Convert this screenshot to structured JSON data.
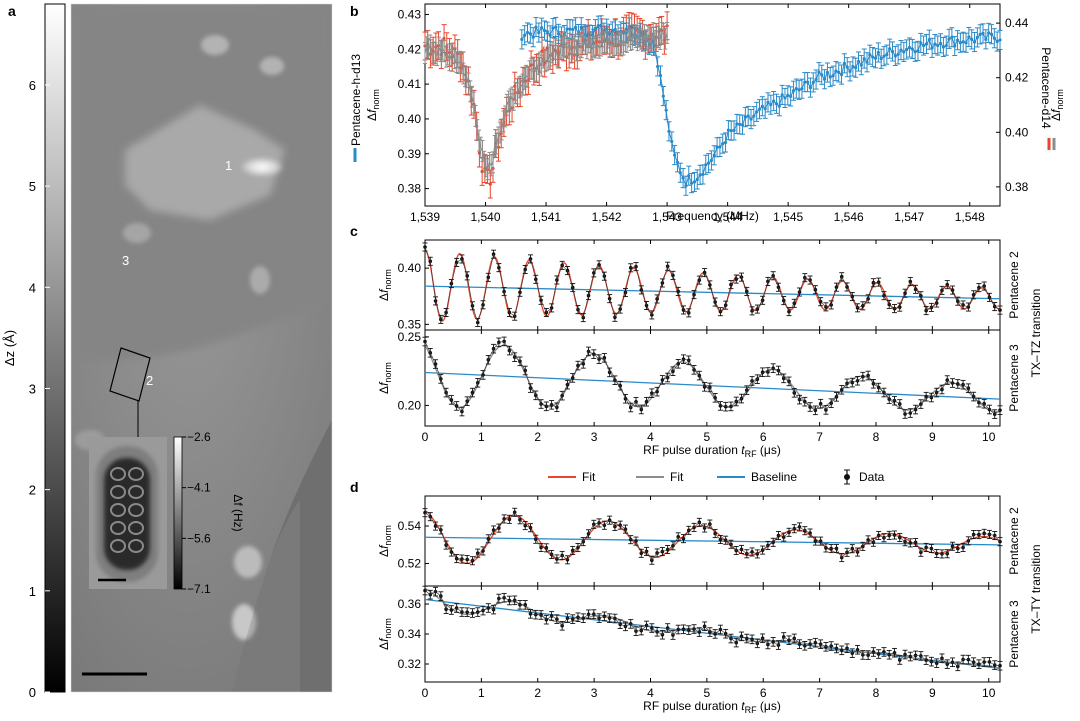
{
  "panel_a": {
    "letter": "a",
    "colorbar": {
      "label": "Δz (Å)",
      "ticks": [
        "0",
        "1",
        "2",
        "3",
        "4",
        "5",
        "6"
      ],
      "range": [
        0,
        6.8
      ]
    },
    "markers": [
      "1",
      "2",
      "3"
    ],
    "inset": {
      "colorbar_label": "Δf (Hz)",
      "ticks": [
        "−2.6",
        "−4.1",
        "−5.6",
        "−7.1"
      ],
      "range": [
        -7.1,
        -2.6
      ]
    }
  },
  "legend": {
    "items": [
      {
        "label": "Fit",
        "color": "#e8462a",
        "kind": "line"
      },
      {
        "label": "Fit",
        "color": "#8c8c8c",
        "kind": "line"
      },
      {
        "label": "Baseline",
        "color": "#2a8ac9",
        "kind": "line"
      },
      {
        "label": "Data",
        "color": "#111111",
        "kind": "marker"
      }
    ]
  },
  "chart_data": [
    {
      "panel": "b",
      "type": "line",
      "xlabel": "Frequency (MHz)",
      "xlim": [
        1539,
        1548.5
      ],
      "xticks": [
        "1,539",
        "1,540",
        "1,541",
        "1,542",
        "1,543",
        "1,544",
        "1,545",
        "1,546",
        "1,547",
        "1,548"
      ],
      "ylabel_left": "Δf norm",
      "ylim_left": [
        0.375,
        0.433
      ],
      "yticks_left": [
        "0.43",
        "0.42",
        "0.41",
        "0.40",
        "0.39",
        "0.38"
      ],
      "ylabel_right": "Δf norm",
      "ylim_right": [
        0.373,
        0.447
      ],
      "yticks_right": [
        "0.44",
        "0.42",
        "0.40",
        "0.38"
      ],
      "side_label_left": "Pentacene-h-d13",
      "side_label_right": "Pentacene-d14",
      "series": [
        {
          "name": "Pentacene-h-d13",
          "color": "#2a8ac9",
          "axis": "right",
          "x": [
            1540.6,
            1541.0,
            1541.5,
            1542.0,
            1542.5,
            1542.8,
            1543.0,
            1543.1,
            1543.3,
            1543.5,
            1543.8,
            1544.0,
            1544.5,
            1545.0,
            1545.5,
            1546.0,
            1546.5,
            1547.0,
            1547.5,
            1548.0,
            1548.5
          ],
          "y": [
            0.436,
            0.437,
            0.437,
            0.438,
            0.437,
            0.432,
            0.405,
            0.392,
            0.382,
            0.384,
            0.392,
            0.399,
            0.407,
            0.413,
            0.42,
            0.424,
            0.428,
            0.431,
            0.433,
            0.434,
            0.435
          ]
        },
        {
          "name": "Pentacene-d14",
          "color": "#e8462a",
          "axis": "left",
          "x": [
            1539.0,
            1539.3,
            1539.6,
            1539.8,
            1539.9,
            1540.0,
            1540.1,
            1540.2,
            1540.4,
            1540.7,
            1541.0,
            1541.5,
            1542.0,
            1542.5,
            1543.0
          ],
          "y": [
            0.421,
            0.421,
            0.417,
            0.405,
            0.392,
            0.382,
            0.384,
            0.393,
            0.404,
            0.413,
            0.418,
            0.421,
            0.423,
            0.424,
            0.424
          ]
        },
        {
          "name": "Fit",
          "color": "#8c8c8c",
          "axis": "left",
          "x": [
            1539.0,
            1539.3,
            1539.6,
            1539.8,
            1539.9,
            1540.0,
            1540.1,
            1540.2,
            1540.4,
            1540.7,
            1541.0,
            1541.5,
            1542.0,
            1542.5,
            1543.0
          ],
          "y": [
            0.42,
            0.419,
            0.416,
            0.405,
            0.394,
            0.385,
            0.387,
            0.395,
            0.405,
            0.413,
            0.418,
            0.421,
            0.422,
            0.423,
            0.424
          ]
        }
      ]
    },
    {
      "panel": "c",
      "type": "line",
      "xlabel": "RF pulse duration tRF (μs)",
      "xlim": [
        0,
        10.2
      ],
      "xticks": [
        "0",
        "1",
        "2",
        "3",
        "4",
        "5",
        "6",
        "7",
        "8",
        "9",
        "10"
      ],
      "right_label": "TX–TZ transition",
      "subplots": [
        {
          "name": "Pentacene 2",
          "ylim": [
            0.345,
            0.425
          ],
          "yticks": [
            "0.40",
            "0.35"
          ],
          "data": {
            "offset": 0.384,
            "slope": -0.0011,
            "amp0": 0.032,
            "decay": 8,
            "freq": 1.62,
            "phase": 0
          },
          "fit_color": "#e8462a",
          "baseline_color": "#2a8ac9"
        },
        {
          "name": "Pentacene 3",
          "ylim": [
            0.185,
            0.255
          ],
          "yticks": [
            "0.25",
            "0.20"
          ],
          "data": {
            "offset": 0.224,
            "slope": -0.0019,
            "amp0": 0.026,
            "decay": 10,
            "freq": 0.63,
            "phase": 0.7
          },
          "fit_color": "#8c8c8c",
          "baseline_color": "#2a8ac9"
        }
      ]
    },
    {
      "panel": "d",
      "type": "line",
      "xlabel": "RF pulse duration tRF (μs)",
      "xlim": [
        0,
        10.2
      ],
      "xticks": [
        "0",
        "1",
        "2",
        "3",
        "4",
        "5",
        "6",
        "7",
        "8",
        "9",
        "10"
      ],
      "right_label": "TX–TY transition",
      "subplots": [
        {
          "name": "Pentacene 2",
          "ylim": [
            0.508,
            0.556
          ],
          "yticks": [
            "0.54",
            "0.52"
          ],
          "data": {
            "offset": 0.534,
            "slope": -0.0004,
            "amp0": 0.015,
            "decay": 8,
            "freq": 0.6,
            "phase": 0.3
          },
          "fit_color": "#e8462a",
          "baseline_color": "#2a8ac9"
        },
        {
          "name": "Pentacene 3",
          "ylim": [
            0.308,
            0.372
          ],
          "yticks": [
            "0.36",
            "0.34",
            "0.32"
          ],
          "data": {
            "offset": 0.363,
            "slope": -0.0045,
            "amp0": 0.008,
            "decay": 4,
            "freq": 0.6,
            "phase": 0.4
          },
          "fit_color": "#8c8c8c",
          "baseline_color": "#2a8ac9"
        }
      ]
    }
  ]
}
